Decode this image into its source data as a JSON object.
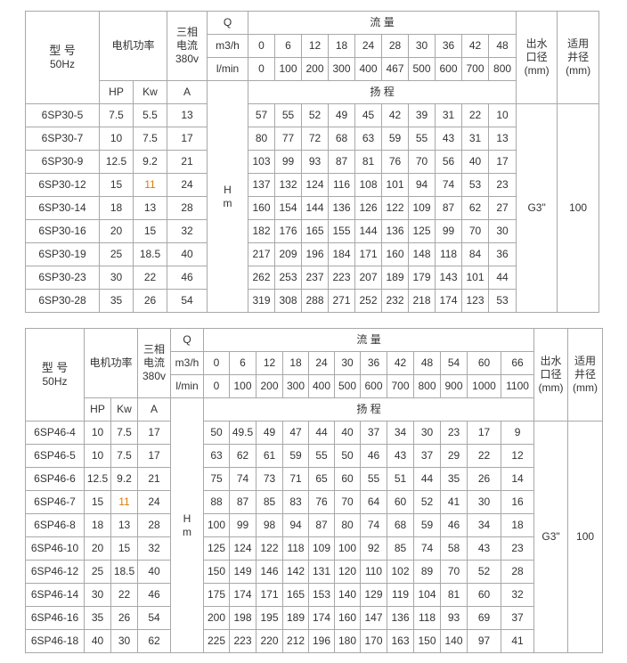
{
  "highlight_color": "#e07b00",
  "tables": [
    {
      "header": {
        "model_label": "型 号",
        "freq_label": "50Hz",
        "motor_power_label": "电机功率",
        "current_label_1": "三相",
        "current_label_2": "电流",
        "current_label_3": "380v",
        "q_label": "Q",
        "flow_label": "流 量",
        "m3h_label": "m3/h",
        "lmin_label": "l/min",
        "outlet_label_1": "出水",
        "outlet_label_2": "口径",
        "outlet_label_3": "(mm)",
        "well_label_1": "适用",
        "well_label_2": "井径",
        "well_label_3": "(mm)",
        "hp_label": "HP",
        "kw_label": "Kw",
        "a_label": "A",
        "head_label": "扬 程",
        "h_label": "H",
        "m_label": "m",
        "flow_m3h": [
          "0",
          "6",
          "12",
          "18",
          "24",
          "28",
          "30",
          "36",
          "42",
          "48"
        ],
        "flow_lmin": [
          "0",
          "100",
          "200",
          "300",
          "400",
          "467",
          "500",
          "600",
          "700",
          "800"
        ]
      },
      "outlet": "G3\"",
      "well": "100",
      "rows": [
        {
          "model": "6SP30-5",
          "hp": "7.5",
          "kw": "5.5",
          "a": "13",
          "heads": [
            "57",
            "55",
            "52",
            "49",
            "45",
            "42",
            "39",
            "31",
            "22",
            "10"
          ]
        },
        {
          "model": "6SP30-7",
          "hp": "10",
          "kw": "7.5",
          "a": "17",
          "heads": [
            "80",
            "77",
            "72",
            "68",
            "63",
            "59",
            "55",
            "43",
            "31",
            "13"
          ]
        },
        {
          "model": "6SP30-9",
          "hp": "12.5",
          "kw": "9.2",
          "a": "21",
          "heads": [
            "103",
            "99",
            "93",
            "87",
            "81",
            "76",
            "70",
            "56",
            "40",
            "17"
          ]
        },
        {
          "model": "6SP30-12",
          "hp": "15",
          "kw": "11",
          "kw_highlight": true,
          "a": "24",
          "heads": [
            "137",
            "132",
            "124",
            "116",
            "108",
            "101",
            "94",
            "74",
            "53",
            "23"
          ]
        },
        {
          "model": "6SP30-14",
          "hp": "18",
          "kw": "13",
          "a": "28",
          "heads": [
            "160",
            "154",
            "144",
            "136",
            "126",
            "122",
            "109",
            "87",
            "62",
            "27"
          ]
        },
        {
          "model": "6SP30-16",
          "hp": "20",
          "kw": "15",
          "a": "32",
          "heads": [
            "182",
            "176",
            "165",
            "155",
            "144",
            "136",
            "125",
            "99",
            "70",
            "30"
          ]
        },
        {
          "model": "6SP30-19",
          "hp": "25",
          "kw": "18.5",
          "a": "40",
          "heads": [
            "217",
            "209",
            "196",
            "184",
            "171",
            "160",
            "148",
            "118",
            "84",
            "36"
          ]
        },
        {
          "model": "6SP30-23",
          "hp": "30",
          "kw": "22",
          "a": "46",
          "heads": [
            "262",
            "253",
            "237",
            "223",
            "207",
            "189",
            "179",
            "143",
            "101",
            "44"
          ]
        },
        {
          "model": "6SP30-28",
          "hp": "35",
          "kw": "26",
          "a": "54",
          "heads": [
            "319",
            "308",
            "288",
            "271",
            "252",
            "232",
            "218",
            "174",
            "123",
            "53"
          ]
        }
      ]
    },
    {
      "header": {
        "model_label": "型 号",
        "freq_label": "50Hz",
        "motor_power_label": "电机功率",
        "current_label_1": "三相",
        "current_label_2": "电流",
        "current_label_3": "380v",
        "q_label": "Q",
        "flow_label": "流 量",
        "m3h_label": "m3/h",
        "lmin_label": "l/min",
        "outlet_label_1": "出水",
        "outlet_label_2": "口径",
        "outlet_label_3": "(mm)",
        "well_label_1": "适用",
        "well_label_2": "井径",
        "well_label_3": "(mm)",
        "hp_label": "HP",
        "kw_label": "Kw",
        "a_label": "A",
        "head_label": "扬 程",
        "h_label": "H",
        "m_label": "m",
        "flow_m3h": [
          "0",
          "6",
          "12",
          "18",
          "24",
          "30",
          "36",
          "42",
          "48",
          "54",
          "60",
          "66"
        ],
        "flow_lmin": [
          "0",
          "100",
          "200",
          "300",
          "400",
          "500",
          "600",
          "700",
          "800",
          "900",
          "1000",
          "1100"
        ]
      },
      "outlet": "G3\"",
      "well": "100",
      "rows": [
        {
          "model": "6SP46-4",
          "hp": "10",
          "kw": "7.5",
          "a": "17",
          "heads": [
            "50",
            "49.5",
            "49",
            "47",
            "44",
            "40",
            "37",
            "34",
            "30",
            "23",
            "17",
            "9"
          ]
        },
        {
          "model": "6SP46-5",
          "hp": "10",
          "kw": "7.5",
          "a": "17",
          "heads": [
            "63",
            "62",
            "61",
            "59",
            "55",
            "50",
            "46",
            "43",
            "37",
            "29",
            "22",
            "12"
          ]
        },
        {
          "model": "6SP46-6",
          "hp": "12.5",
          "kw": "9.2",
          "a": "21",
          "heads": [
            "75",
            "74",
            "73",
            "71",
            "65",
            "60",
            "55",
            "51",
            "44",
            "35",
            "26",
            "14"
          ]
        },
        {
          "model": "6SP46-7",
          "hp": "15",
          "kw": "11",
          "kw_highlight": true,
          "a": "24",
          "heads": [
            "88",
            "87",
            "85",
            "83",
            "76",
            "70",
            "64",
            "60",
            "52",
            "41",
            "30",
            "16"
          ]
        },
        {
          "model": "6SP46-8",
          "hp": "18",
          "kw": "13",
          "a": "28",
          "heads": [
            "100",
            "99",
            "98",
            "94",
            "87",
            "80",
            "74",
            "68",
            "59",
            "46",
            "34",
            "18"
          ]
        },
        {
          "model": "6SP46-10",
          "hp": "20",
          "kw": "15",
          "a": "32",
          "heads": [
            "125",
            "124",
            "122",
            "118",
            "109",
            "100",
            "92",
            "85",
            "74",
            "58",
            "43",
            "23"
          ]
        },
        {
          "model": "6SP46-12",
          "hp": "25",
          "kw": "18.5",
          "a": "40",
          "heads": [
            "150",
            "149",
            "146",
            "142",
            "131",
            "120",
            "110",
            "102",
            "89",
            "70",
            "52",
            "28"
          ]
        },
        {
          "model": "6SP46-14",
          "hp": "30",
          "kw": "22",
          "a": "46",
          "heads": [
            "175",
            "174",
            "171",
            "165",
            "153",
            "140",
            "129",
            "119",
            "104",
            "81",
            "60",
            "32"
          ]
        },
        {
          "model": "6SP46-16",
          "hp": "35",
          "kw": "26",
          "a": "54",
          "heads": [
            "200",
            "198",
            "195",
            "189",
            "174",
            "160",
            "147",
            "136",
            "118",
            "93",
            "69",
            "37"
          ]
        },
        {
          "model": "6SP46-18",
          "hp": "40",
          "kw": "30",
          "a": "62",
          "heads": [
            "225",
            "223",
            "220",
            "212",
            "196",
            "180",
            "170",
            "163",
            "150",
            "140",
            "97",
            "41"
          ]
        }
      ]
    }
  ]
}
